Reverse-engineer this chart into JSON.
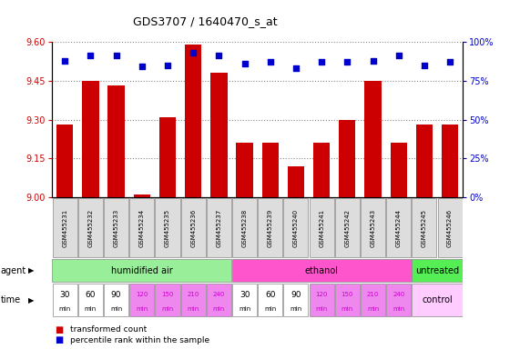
{
  "title": "GDS3707 / 1640470_s_at",
  "samples": [
    "GSM455231",
    "GSM455232",
    "GSM455233",
    "GSM455234",
    "GSM455235",
    "GSM455236",
    "GSM455237",
    "GSM455238",
    "GSM455239",
    "GSM455240",
    "GSM455241",
    "GSM455242",
    "GSM455243",
    "GSM455244",
    "GSM455245",
    "GSM455246"
  ],
  "bar_values": [
    9.28,
    9.45,
    9.43,
    9.01,
    9.31,
    9.59,
    9.48,
    9.21,
    9.21,
    9.12,
    9.21,
    9.3,
    9.45,
    9.21,
    9.28,
    9.28
  ],
  "percentile_values": [
    88,
    91,
    91,
    84,
    85,
    93,
    91,
    86,
    87,
    83,
    87,
    87,
    88,
    91,
    85,
    87
  ],
  "ylim_left": [
    9.0,
    9.6
  ],
  "ylim_right": [
    0,
    100
  ],
  "yticks_left": [
    9.0,
    9.15,
    9.3,
    9.45,
    9.6
  ],
  "yticks_right": [
    0,
    25,
    50,
    75,
    100
  ],
  "bar_color": "#cc0000",
  "dot_color": "#0000cc",
  "agent_groups": [
    {
      "label": "humidified air",
      "start": 0,
      "end": 7,
      "color": "#99ee99"
    },
    {
      "label": "ethanol",
      "start": 7,
      "end": 14,
      "color": "#ff55cc"
    },
    {
      "label": "untreated",
      "start": 14,
      "end": 16,
      "color": "#55ee55"
    }
  ],
  "time_labels_1": [
    "30",
    "60",
    "90",
    "120",
    "150",
    "210",
    "240",
    "30",
    "60",
    "90",
    "120",
    "150",
    "210",
    "240"
  ],
  "time_colors": [
    "#ffffff",
    "#ffffff",
    "#ffffff",
    "#ee88ee",
    "#ee88ee",
    "#ee88ee",
    "#ee88ee",
    "#ffffff",
    "#ffffff",
    "#ffffff",
    "#ee88ee",
    "#ee88ee",
    "#ee88ee",
    "#ee88ee"
  ],
  "time_control_label": "control",
  "time_control_color": "#ffccff",
  "agent_label": "agent",
  "time_label": "time",
  "legend_items": [
    {
      "color": "#cc0000",
      "label": "transformed count"
    },
    {
      "color": "#0000cc",
      "label": "percentile rank within the sample"
    }
  ],
  "grid_color": "#888888",
  "background_color": "#ffffff",
  "left_tick_color": "#cc0000",
  "right_tick_color": "#0000cc",
  "sample_box_color": "#dddddd",
  "sample_box_edge": "#888888"
}
